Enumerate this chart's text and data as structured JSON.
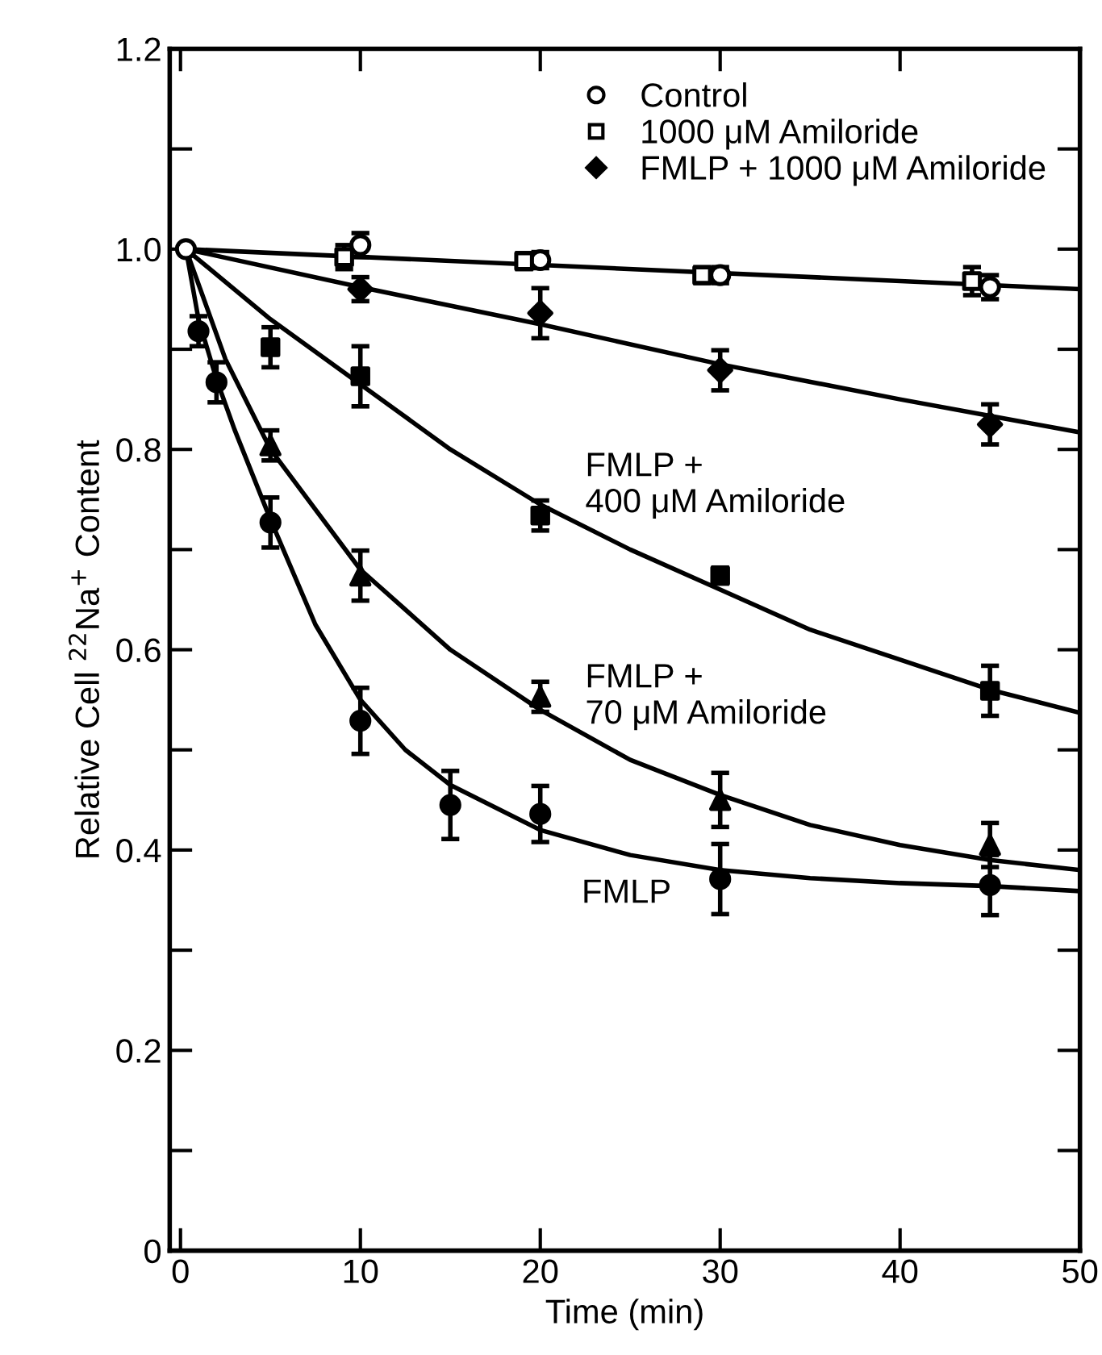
{
  "chart_data": {
    "type": "scatter",
    "xlabel": "Time (min)",
    "ylabel": "Relative Cell $^{22}$Na$^{+}$ Content",
    "xlim": [
      -0.6,
      50
    ],
    "ylim": [
      0,
      1.2
    ],
    "xticks": [
      0,
      10,
      20,
      30,
      40,
      50
    ],
    "yticks": [
      0,
      {
        "value": 0.1,
        "label": null
      },
      0.2,
      {
        "value": 0.3,
        "label": null
      },
      0.4,
      {
        "value": 0.5,
        "label": null
      },
      0.6,
      {
        "value": 0.7,
        "label": null
      },
      0.8,
      {
        "value": 0.9,
        "label": null
      },
      {
        "value": 1.0,
        "label": "1.0"
      },
      {
        "value": 1.1,
        "label": null
      },
      1.2
    ],
    "grid": false,
    "legend": "top right",
    "series": [
      {
        "name": "Control",
        "color": "#000000",
        "marker": "circle",
        "x": [
          0.3,
          10,
          20,
          30,
          45
        ],
        "values": [
          1.0,
          1.004,
          0.989,
          0.974,
          0.962
        ],
        "errors": [
          null,
          0.012,
          0.008,
          0.008,
          0.012
        ]
      },
      {
        "name": "1000 μM Amiloride",
        "color": "#000000",
        "marker": "square",
        "x": [
          9.1,
          19.1,
          29,
          44
        ],
        "values": [
          0.992,
          0.988,
          0.974,
          0.968
        ],
        "errors": [
          0.012,
          0.008,
          0.008,
          0.014
        ]
      },
      {
        "name": "FMLP + 1000 μM Amiloride",
        "color": "#000000",
        "marker": "diamond",
        "x": [
          10,
          20,
          30,
          45
        ],
        "values": [
          0.96,
          0.936,
          0.879,
          0.825
        ],
        "errors": [
          0.012,
          0.025,
          0.02,
          0.02
        ]
      },
      {
        "name": "FMLP +\n400 μM Amiloride",
        "color": "#000000",
        "marker": "square",
        "x": [
          5,
          10,
          20,
          30,
          45
        ],
        "values": [
          0.902,
          0.873,
          0.734,
          0.674,
          0.559
        ],
        "errors": [
          0.02,
          0.03,
          0.015,
          0.008,
          0.025
        ]
      },
      {
        "name": "FMLP +\n70 μM Amiloride",
        "color": "#000000",
        "marker": "triangle",
        "x": [
          5,
          10,
          20,
          30,
          45
        ],
        "values": [
          0.804,
          0.674,
          0.553,
          0.45,
          0.405
        ],
        "errors": [
          0.015,
          0.025,
          0.015,
          0.027,
          0.022
        ]
      },
      {
        "name": "FMLP",
        "color": "#000000",
        "marker": "circle",
        "x": [
          1,
          2,
          5,
          10,
          15,
          20,
          30,
          45
        ],
        "values": [
          0.918,
          0.867,
          0.727,
          0.529,
          0.445,
          0.436,
          0.371,
          0.365
        ],
        "errors": [
          0.015,
          0.02,
          0.025,
          0.033,
          0.034,
          0.028,
          0.035,
          0.03
        ]
      },
      {
        "type": "line",
        "color": "#000000",
        "marker": "none",
        "x": [
          0.3,
          50
        ],
        "values": [
          1.0,
          0.96
        ]
      },
      {
        "type": "line",
        "color": "#000000",
        "marker": "none",
        "x": [
          0.3,
          10,
          20,
          30,
          40,
          50
        ],
        "values": [
          1.0,
          0.962,
          0.925,
          0.885,
          0.85,
          0.817
        ]
      },
      {
        "type": "line",
        "color": "#000000",
        "marker": "none",
        "x": [
          0.3,
          5,
          10,
          15,
          20,
          25,
          30,
          35,
          40,
          45,
          50
        ],
        "values": [
          1.0,
          0.93,
          0.865,
          0.8,
          0.745,
          0.7,
          0.66,
          0.62,
          0.59,
          0.56,
          0.537
        ]
      },
      {
        "type": "line",
        "color": "#000000",
        "marker": "none",
        "x": [
          0.3,
          2.5,
          5,
          10,
          15,
          20,
          25,
          30,
          35,
          40,
          45,
          50
        ],
        "values": [
          1.0,
          0.89,
          0.8,
          0.68,
          0.6,
          0.54,
          0.49,
          0.455,
          0.425,
          0.405,
          0.39,
          0.38
        ]
      },
      {
        "type": "line",
        "color": "#000000",
        "marker": "none",
        "x": [
          0.3,
          1,
          2,
          3,
          5,
          7.5,
          10,
          12.5,
          15,
          20,
          25,
          30,
          35,
          40,
          45,
          50
        ],
        "values": [
          1.0,
          0.93,
          0.87,
          0.82,
          0.73,
          0.625,
          0.55,
          0.5,
          0.465,
          0.42,
          0.395,
          0.38,
          0.372,
          0.367,
          0.364,
          0.359
        ]
      }
    ]
  }
}
